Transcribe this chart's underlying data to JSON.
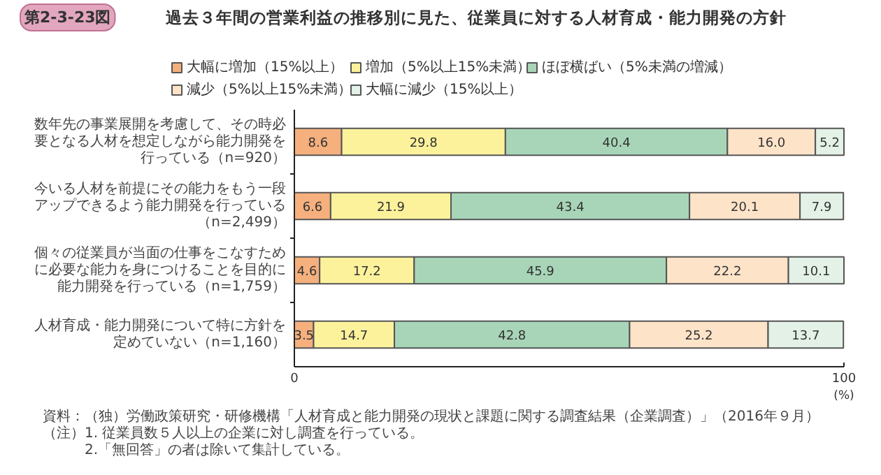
{
  "chart_data": {
    "type": "bar",
    "orientation": "horizontal",
    "stacked": true,
    "subtitle": "第2-3-23図",
    "title": "過去３年間の営業利益の推移別に見た、従業員に対する人材育成・能力開発の方針",
    "categories": [
      "数年先の事業展開を考慮して、その時必要となる人材を想定しながら能力開発を行っている（n=920）",
      "今いる人材を前提にその能力をもう一段アップできるよう能力開発を行っている（n=2,499）",
      "個々の従業員が当面の仕事をこなすために必要な能力を身につけることを目的に能力開発を行っている（n=1,759）",
      "人材育成・能力開発について特に方針を定めていない（n=1,160）"
    ],
    "series": [
      {
        "name": "大幅に増加（15%以上）",
        "color": "#f5b07e",
        "values": [
          8.6,
          6.6,
          4.6,
          3.5
        ]
      },
      {
        "name": "増加（5%以上15%未満）",
        "color": "#fcf29c",
        "values": [
          29.8,
          21.9,
          17.2,
          14.7
        ]
      },
      {
        "name": "ほぼ横ばい（5%未満の増減）",
        "color": "#a8d5b8",
        "values": [
          40.4,
          43.4,
          45.9,
          42.8
        ]
      },
      {
        "name": "減少（5%以上15%未満）",
        "color": "#fde3c8",
        "values": [
          16.0,
          20.1,
          22.2,
          25.2
        ],
        "value_labels": [
          "16.0",
          "20.1",
          "22.2",
          "25.2"
        ]
      },
      {
        "name": "大幅に減少（15%以上）",
        "color": "#e3f1e6",
        "values": [
          5.2,
          7.9,
          10.1,
          13.7
        ]
      }
    ],
    "xlim": [
      0,
      100
    ],
    "xticks": [
      0,
      100
    ],
    "xlabel": "(%)",
    "data_labels": true,
    "legend": "top",
    "annotations": [
      "資料：（独）労働政策研究・研修機構「人材育成と能力開発の現状と課題に関する調査結果（企業調査）」（2016年９月）",
      "（注）1. 従業員数５人以上の企業に対し調査を行っている。",
      "　　　2.「無回答」の者は除いて集計している。"
    ]
  }
}
